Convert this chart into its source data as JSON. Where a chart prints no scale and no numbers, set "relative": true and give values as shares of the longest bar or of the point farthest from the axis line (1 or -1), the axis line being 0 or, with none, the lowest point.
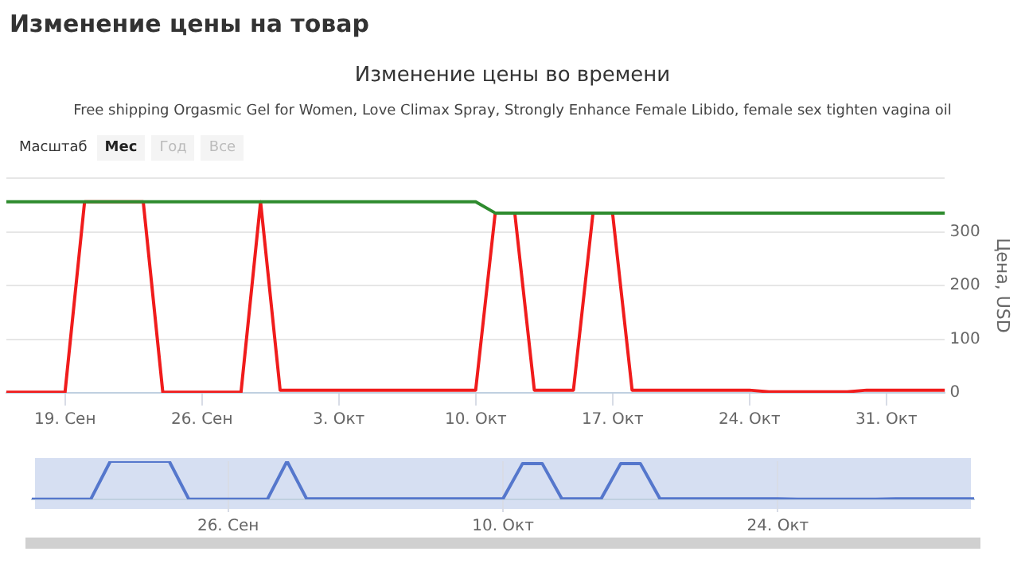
{
  "chart_data": [
    {
      "type": "line",
      "title": "Изменение цены во времени",
      "subtitle": "Free shipping Orgasmic Gel for Women, Love Climax Spray, Strongly Enhance Female Libido, female sex tighten vagina oil",
      "ylabel": "Цена, USD",
      "annotations": [
        "Изменение цены на товар",
        "Масштаб",
        "Мес",
        "Год",
        "Все"
      ],
      "series": [
        {
          "color": "#2e8b2e",
          "x": [
            "--09-16",
            "--10-10",
            "--10-11",
            "--11-03"
          ],
          "values": [
            356,
            356,
            335,
            335
          ]
        },
        {
          "color": "#f01c1c",
          "x": [
            "--09-16",
            "--09-19",
            "--09-20",
            "--09-23",
            "--09-24",
            "--09-28",
            "--09-29",
            "--09-30",
            "--10-10",
            "--10-11",
            "--10-12",
            "--10-13",
            "--10-15",
            "--10-16",
            "--10-17",
            "--10-18",
            "--10-24",
            "--10-25",
            "--10-29",
            "--10-30",
            "--11-03"
          ],
          "values": [
            1,
            1,
            356,
            356,
            1,
            1,
            356,
            5,
            5,
            335,
            335,
            5,
            5,
            335,
            335,
            5,
            5,
            2,
            2,
            5,
            5
          ]
        }
      ],
      "xlim": [
        "--09-16",
        "--11-03"
      ],
      "xticks": [
        {
          "value": "--09-19",
          "label": "19. Сен"
        },
        {
          "value": "--09-26",
          "label": "26. Сен"
        },
        {
          "value": "--10-03",
          "label": "3. Окт"
        },
        {
          "value": "--10-10",
          "label": "10. Окт"
        },
        {
          "value": "--10-17",
          "label": "17. Окт"
        },
        {
          "value": "--10-24",
          "label": "24. Окт"
        },
        {
          "value": "--10-31",
          "label": "31. Окт"
        }
      ],
      "ylim": [
        0,
        400
      ],
      "yticks": [
        0,
        100,
        200,
        300,
        {
          "value": 400,
          "label": null
        }
      ],
      "grid": "y",
      "legend": false
    },
    {
      "type": "line",
      "relative": true,
      "tick_labels": "x",
      "grid": "x",
      "legend": false,
      "series": [
        {
          "color": "#5577cc",
          "x": [
            "--09-16",
            "--09-19",
            "--09-20",
            "--09-23",
            "--09-24",
            "--09-28",
            "--09-29",
            "--09-30",
            "--10-10",
            "--10-11",
            "--10-12",
            "--10-13",
            "--10-15",
            "--10-16",
            "--10-17",
            "--10-18",
            "--10-24",
            "--10-25",
            "--10-29",
            "--10-30",
            "--11-03"
          ],
          "values": [
            0.003,
            0.003,
            1,
            1,
            0.003,
            0.003,
            1,
            0.014,
            0.014,
            0.94,
            0.94,
            0.014,
            0.014,
            0.94,
            0.94,
            0.014,
            0.014,
            0.006,
            0.006,
            0.014,
            0.014
          ]
        }
      ],
      "xlim": [
        "--09-16",
        "--11-03"
      ],
      "xticks": [
        {
          "value": "--09-26",
          "label": "26. Сен"
        },
        {
          "value": "--10-10",
          "label": "10. Окт"
        },
        {
          "value": "--10-24",
          "label": "24. Окт"
        }
      ]
    }
  ]
}
